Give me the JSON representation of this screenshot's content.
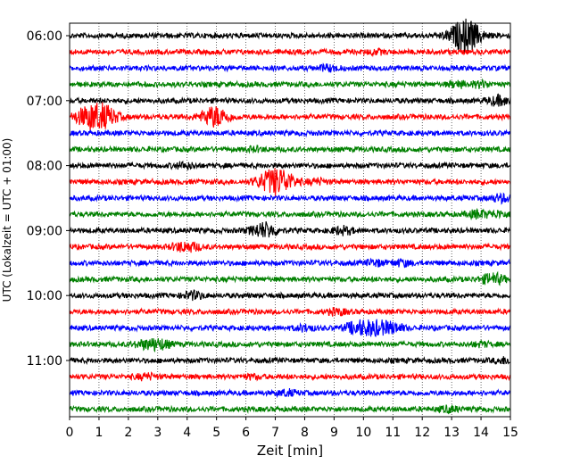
{
  "chart_data": {
    "type": "line",
    "subtype": "helicorder",
    "xlabel": "Zeit  [min]",
    "ylabel": "UTC (Lokalzeit = UTC + 01:00)",
    "xlim": [
      0,
      15
    ],
    "x_ticks": [
      0,
      1,
      2,
      3,
      4,
      5,
      6,
      7,
      8,
      9,
      10,
      11,
      12,
      13,
      14,
      15
    ],
    "x_tick_labels": [
      "0",
      "1",
      "2",
      "3",
      "4",
      "5",
      "6",
      "7",
      "8",
      "9",
      "10",
      "11",
      "12",
      "13",
      "14",
      "15"
    ],
    "y_tick_labels": [
      "06:00",
      "07:00",
      "08:00",
      "09:00",
      "10:00",
      "11:00"
    ],
    "y_tick_rows": [
      0,
      4,
      8,
      12,
      16,
      20
    ],
    "rows_per_hour": 4,
    "minutes_per_row": 15,
    "color_cycle": [
      "#000000",
      "#ff0000",
      "#0000ff",
      "#008000"
    ],
    "grid": "vertical dotted lines at each minute",
    "traces": [
      {
        "row": 0,
        "color": "#000000",
        "end": 15,
        "bursts": [
          [
            13.3,
            0.9
          ],
          [
            13.5,
            0.7
          ],
          [
            13.7,
            0.6
          ]
        ]
      },
      {
        "row": 1,
        "color": "#ff0000",
        "end": 15,
        "bursts": [
          [
            10.4,
            0.2
          ]
        ]
      },
      {
        "row": 2,
        "color": "#0000ff",
        "end": 15,
        "bursts": [
          [
            8.8,
            0.3
          ]
        ]
      },
      {
        "row": 3,
        "color": "#008000",
        "end": 15,
        "bursts": [
          [
            13.2,
            0.3
          ],
          [
            14.0,
            0.3
          ]
        ]
      },
      {
        "row": 4,
        "color": "#000000",
        "end": 15,
        "bursts": [
          [
            14.6,
            0.5
          ]
        ]
      },
      {
        "row": 5,
        "color": "#ff0000",
        "end": 15,
        "bursts": [
          [
            0.6,
            0.9
          ],
          [
            1.0,
            0.8
          ],
          [
            1.3,
            0.6
          ],
          [
            4.8,
            0.7
          ],
          [
            5.1,
            0.6
          ]
        ]
      },
      {
        "row": 6,
        "color": "#0000ff",
        "end": 15,
        "bursts": []
      },
      {
        "row": 7,
        "color": "#008000",
        "end": 15,
        "bursts": [
          [
            6.3,
            0.2
          ]
        ]
      },
      {
        "row": 8,
        "color": "#000000",
        "end": 15,
        "bursts": [
          [
            3.9,
            0.3
          ]
        ]
      },
      {
        "row": 9,
        "color": "#ff0000",
        "end": 15,
        "bursts": [
          [
            6.8,
            0.9
          ],
          [
            7.1,
            0.7
          ],
          [
            7.4,
            0.5
          ],
          [
            8.4,
            0.3
          ]
        ]
      },
      {
        "row": 10,
        "color": "#0000ff",
        "end": 15,
        "bursts": [
          [
            14.7,
            0.4
          ]
        ]
      },
      {
        "row": 11,
        "color": "#008000",
        "end": 15,
        "bursts": [
          [
            13.9,
            0.4
          ],
          [
            14.6,
            0.3
          ]
        ]
      },
      {
        "row": 12,
        "color": "#000000",
        "end": 15,
        "bursts": [
          [
            6.5,
            0.6
          ],
          [
            6.8,
            0.4
          ],
          [
            9.3,
            0.4
          ]
        ]
      },
      {
        "row": 13,
        "color": "#ff0000",
        "end": 15,
        "bursts": [
          [
            3.8,
            0.4
          ],
          [
            4.2,
            0.3
          ]
        ]
      },
      {
        "row": 14,
        "color": "#0000ff",
        "end": 15,
        "bursts": [
          [
            10.4,
            0.3
          ],
          [
            11.3,
            0.3
          ]
        ]
      },
      {
        "row": 15,
        "color": "#008000",
        "end": 15,
        "bursts": [
          [
            14.4,
            0.6
          ]
        ]
      },
      {
        "row": 16,
        "color": "#000000",
        "end": 15,
        "bursts": [
          [
            4.2,
            0.4
          ]
        ]
      },
      {
        "row": 17,
        "color": "#ff0000",
        "end": 15,
        "bursts": [
          [
            9.1,
            0.3
          ]
        ]
      },
      {
        "row": 18,
        "color": "#0000ff",
        "end": 15,
        "bursts": [
          [
            8.0,
            0.3
          ],
          [
            9.8,
            0.7
          ],
          [
            10.4,
            0.7
          ],
          [
            11.0,
            0.5
          ]
        ]
      },
      {
        "row": 19,
        "color": "#008000",
        "end": 15,
        "bursts": [
          [
            3.0,
            0.6
          ],
          [
            2.5,
            0.3
          ],
          [
            14.0,
            0.2
          ]
        ]
      },
      {
        "row": 20,
        "color": "#000000",
        "end": 15,
        "bursts": [
          [
            14.8,
            0.3
          ]
        ]
      },
      {
        "row": 21,
        "color": "#ff0000",
        "end": 15,
        "bursts": [
          [
            2.6,
            0.3
          ],
          [
            6.2,
            0.2
          ]
        ]
      },
      {
        "row": 22,
        "color": "#0000ff",
        "end": 15,
        "bursts": [
          [
            7.4,
            0.3
          ]
        ]
      },
      {
        "row": 23,
        "color": "#008000",
        "end": 15,
        "bursts": [
          [
            12.9,
            0.3
          ]
        ]
      }
    ]
  }
}
